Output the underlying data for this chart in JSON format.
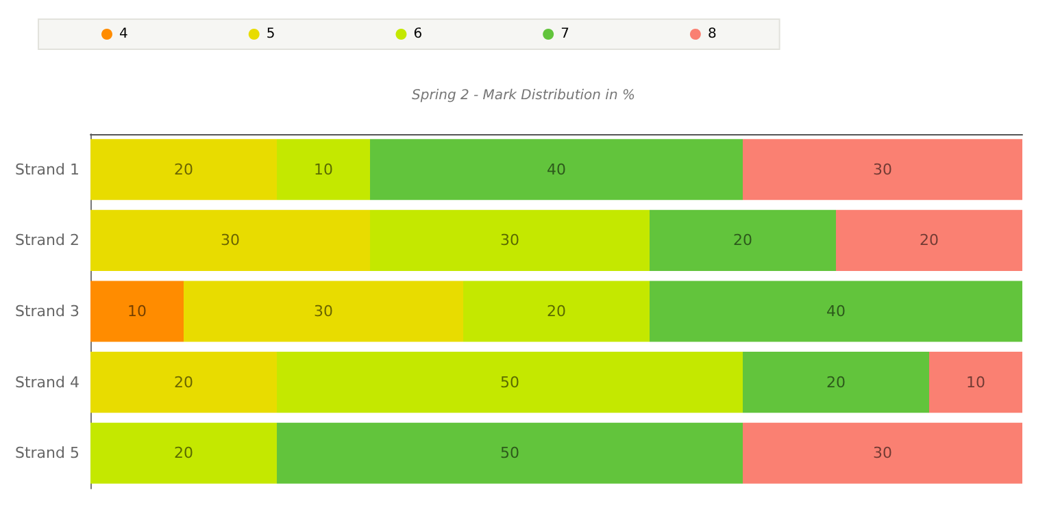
{
  "chart_data": {
    "type": "bar",
    "title": "Spring 2 - Mark Distribution in %",
    "orientation": "horizontal",
    "stacked": true,
    "data_labels": true,
    "legend": "top left",
    "grid": false,
    "tick_labels": "y",
    "xlim": [
      0,
      100
    ],
    "categories": [
      "Strand 1",
      "Strand 2",
      "Strand 3",
      "Strand 4",
      "Strand 5"
    ],
    "series": [
      {
        "name": "4",
        "color": "#ff8c00",
        "values": [
          null,
          null,
          10,
          null,
          null
        ]
      },
      {
        "name": "5",
        "color": "#e8dc00",
        "values": [
          20,
          30,
          30,
          20,
          null
        ]
      },
      {
        "name": "6",
        "color": "#c4e800",
        "values": [
          10,
          30,
          20,
          50,
          20
        ]
      },
      {
        "name": "7",
        "color": "#62c43c",
        "values": [
          40,
          20,
          40,
          20,
          50
        ]
      },
      {
        "name": "8",
        "color": "#fa8072",
        "values": [
          30,
          20,
          null,
          10,
          30
        ]
      }
    ]
  }
}
